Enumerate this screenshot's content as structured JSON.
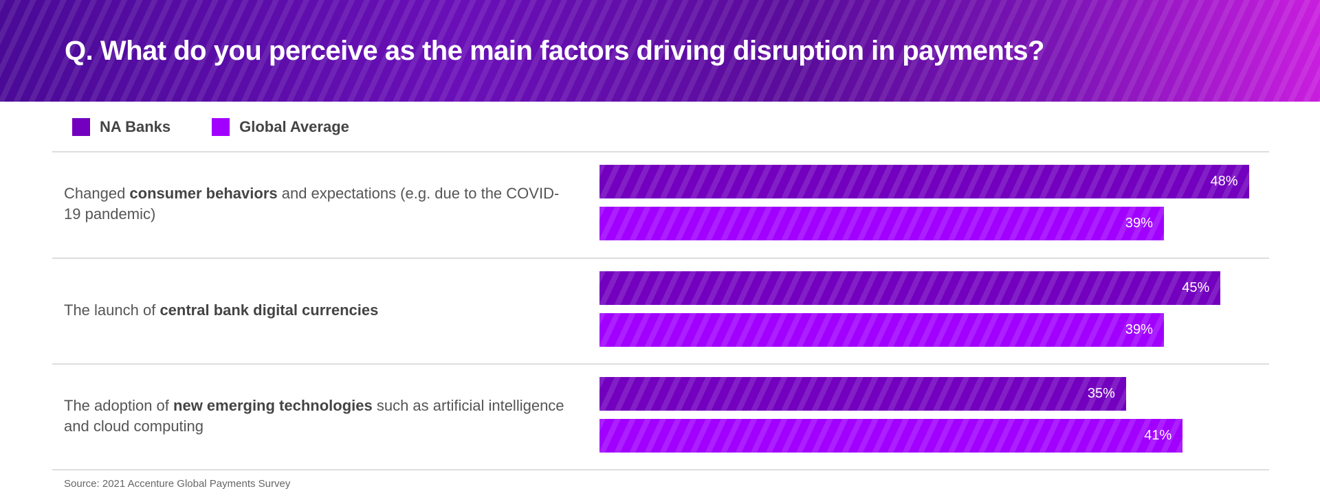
{
  "chart_data": {
    "type": "bar",
    "title": "Q. What do you perceive as the main factors driving disruption in payments?",
    "legend": [
      {
        "name": "NA Banks",
        "color": "#7200be"
      },
      {
        "name": "Global Average",
        "color": "#a100ff"
      }
    ],
    "categories": [
      {
        "pre": "Changed ",
        "bold": "consumer behaviors",
        "post": " and expectations (e.g. due to the COVID-19 pandemic)"
      },
      {
        "pre": "The launch of ",
        "bold": "central bank digital currencies",
        "post": ""
      },
      {
        "pre": "The adoption of ",
        "bold": "new emerging technologies",
        "post": " such as artificial intelligence and cloud computing"
      }
    ],
    "series": [
      {
        "name": "NA Banks",
        "values": [
          48,
          45,
          35
        ],
        "labels": [
          "48%",
          "45%",
          "35%"
        ]
      },
      {
        "name": "Global Average",
        "values": [
          39,
          39,
          41
        ],
        "labels": [
          "39%",
          "39%",
          "41%"
        ]
      }
    ],
    "orientation": "horizontal",
    "legend_placement": "top-left",
    "source": "Source: 2021 Accenture Global Payments Survey"
  }
}
